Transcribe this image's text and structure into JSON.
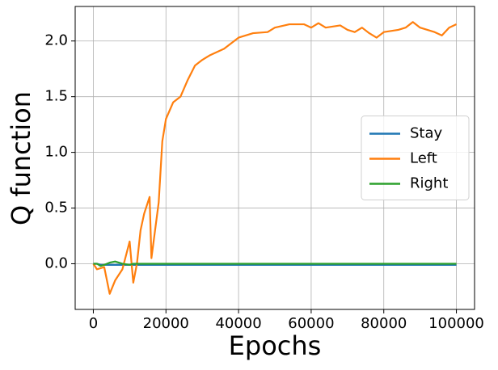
{
  "chart_data": {
    "type": "line",
    "xlabel": "Epochs",
    "ylabel": "Q function",
    "x": [
      0,
      1000,
      2000,
      3000,
      4500,
      6000,
      8000,
      10000,
      11000,
      12000,
      13000,
      14000,
      15500,
      16000,
      17000,
      18000,
      19000,
      20000,
      22000,
      24000,
      26000,
      28000,
      30000,
      32000,
      34000,
      36000,
      38000,
      40000,
      44000,
      48000,
      50000,
      54000,
      58000,
      60000,
      62000,
      64000,
      68000,
      70000,
      72000,
      74000,
      76000,
      78000,
      80000,
      84000,
      86000,
      88000,
      90000,
      92000,
      94000,
      96000,
      98000,
      100000
    ],
    "series": [
      {
        "name": "Stay",
        "color": "#1f77b4",
        "values": [
          0,
          0,
          -0.01,
          -0.01,
          -0.01,
          -0.01,
          -0.01,
          -0.01,
          -0.01,
          -0.01,
          -0.01,
          -0.01,
          -0.01,
          -0.01,
          -0.01,
          -0.01,
          -0.01,
          -0.01,
          -0.01,
          -0.01,
          -0.01,
          -0.01,
          -0.01,
          -0.01,
          -0.01,
          -0.01,
          -0.01,
          -0.01,
          -0.01,
          -0.01,
          -0.01,
          -0.01,
          -0.01,
          -0.01,
          -0.01,
          -0.01,
          -0.01,
          -0.01,
          -0.01,
          -0.01,
          -0.01,
          -0.01,
          -0.01,
          -0.01,
          -0.01,
          -0.01,
          -0.01,
          -0.01,
          -0.01,
          -0.01,
          -0.01,
          -0.01
        ]
      },
      {
        "name": "Left",
        "color": "#ff7f0e",
        "values": [
          0,
          -0.05,
          -0.04,
          -0.03,
          -0.27,
          -0.15,
          -0.05,
          0.2,
          -0.17,
          0,
          0.3,
          0.45,
          0.6,
          0.05,
          0.3,
          0.55,
          1.1,
          1.3,
          1.45,
          1.5,
          1.65,
          1.78,
          1.83,
          1.87,
          1.9,
          1.93,
          1.98,
          2.03,
          2.07,
          2.08,
          2.12,
          2.15,
          2.15,
          2.12,
          2.16,
          2.12,
          2.14,
          2.1,
          2.08,
          2.12,
          2.07,
          2.03,
          2.08,
          2.1,
          2.12,
          2.17,
          2.12,
          2.1,
          2.08,
          2.05,
          2.12,
          2.15
        ]
      },
      {
        "name": "Right",
        "color": "#2ca02c",
        "values": [
          0,
          0,
          -0.02,
          -0.01,
          0.01,
          0.02,
          0,
          -0.01,
          0,
          0,
          0,
          0,
          0,
          0,
          0,
          0,
          0,
          0,
          0,
          0,
          0,
          0,
          0,
          0,
          0,
          0,
          0,
          0,
          0,
          0,
          0,
          0,
          0,
          0,
          0,
          0,
          0,
          0,
          0,
          0,
          0,
          0,
          0,
          0,
          0,
          0,
          0,
          0,
          0,
          0,
          0,
          0
        ]
      }
    ],
    "xlim": [
      -5000,
      105000
    ],
    "ylim": [
      -0.41,
      2.31
    ],
    "xticks": [
      0,
      20000,
      40000,
      60000,
      80000,
      100000
    ],
    "yticks": [
      {
        "value": 0,
        "label": "0.0"
      },
      0.5,
      {
        "value": 1,
        "label": "1.0"
      },
      1.5,
      {
        "value": 2,
        "label": "2.0"
      }
    ],
    "grid": true,
    "legend": "center right"
  }
}
